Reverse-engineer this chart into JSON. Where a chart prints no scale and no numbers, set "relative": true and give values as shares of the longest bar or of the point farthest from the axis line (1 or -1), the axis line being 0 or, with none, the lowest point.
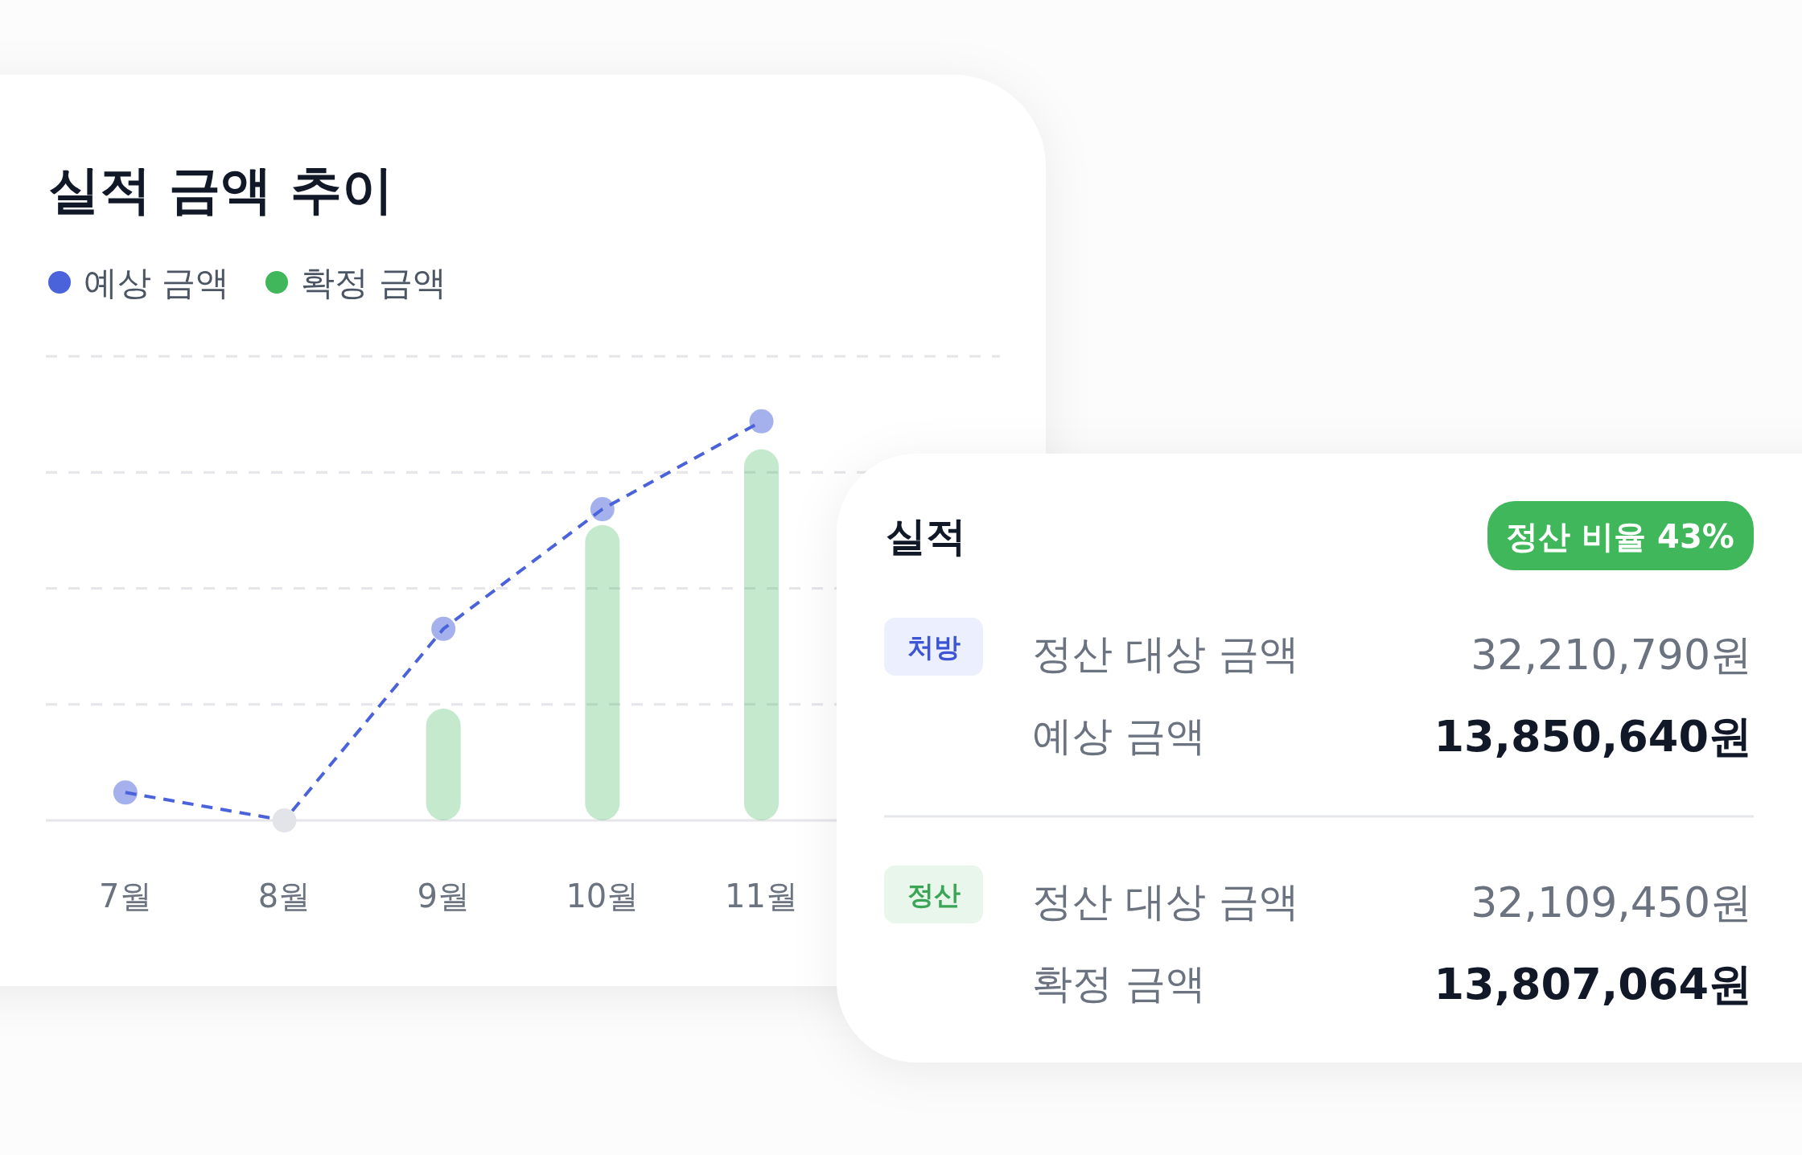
{
  "chart_data": [
    {
      "type": "bar",
      "title": "실적 금액 추이",
      "categories": [
        "7월",
        "8월",
        "9월",
        "10월",
        "11월",
        null
      ],
      "series": [
        {
          "name": "예상 금액",
          "type": "line",
          "color": "#4a63db",
          "values": [
            0.07,
            0,
            0.48,
            0.78,
            1,
            null
          ]
        },
        {
          "name": "확정 금액",
          "type": "bar",
          "color": "#3fb75a",
          "values": [
            null,
            null,
            0.28,
            0.74,
            0.93,
            null
          ]
        }
      ],
      "relative": true,
      "grid": "y",
      "legend": "top left",
      "marker": "circle",
      "line_style": "dashed"
    },
    {
      "type": "other",
      "title": "실적",
      "annotations": [
        "정산 비율 43%",
        "처방",
        "정산 대상 금액",
        "32,210,790원",
        "예상 금액",
        "13,850,640원",
        "정산",
        "정산 대상 금액",
        "32,109,450원",
        "확정 금액",
        "13,807,064원"
      ]
    }
  ]
}
